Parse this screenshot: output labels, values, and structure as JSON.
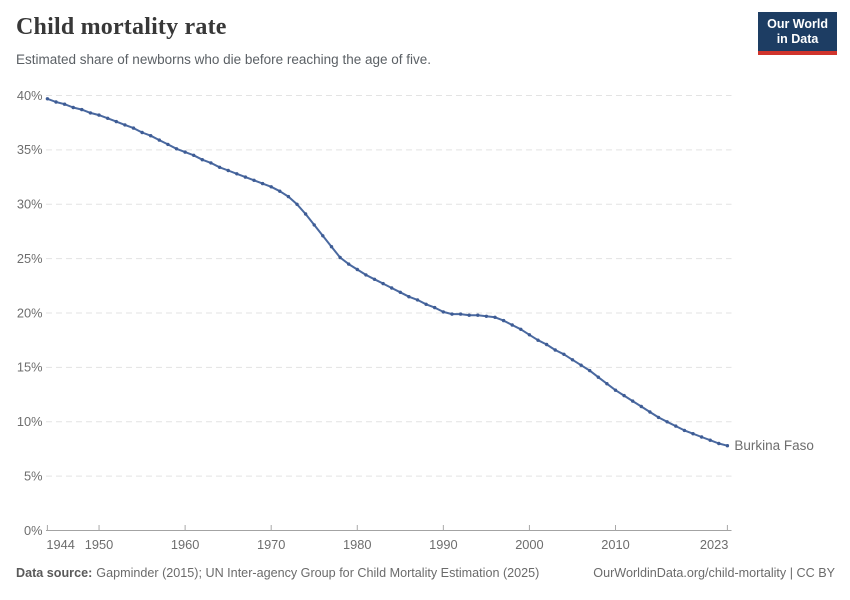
{
  "header": {
    "title": "Child mortality rate",
    "subtitle": "Estimated share of newborns who die before reaching the age of five.",
    "logo": {
      "line1": "Our World",
      "line2": "in Data",
      "bg_color": "#1d3d63",
      "accent_color": "#d0342c"
    }
  },
  "chart_data": {
    "type": "line",
    "title": "Child mortality rate",
    "xlabel": "",
    "ylabel": "",
    "xlim": [
      1944,
      2023
    ],
    "ylim": [
      0,
      40
    ],
    "grid": "horizontal-dashed",
    "legend_position": "end-of-line-label",
    "xticks": [
      1944,
      1950,
      1960,
      1970,
      1980,
      1990,
      2000,
      2010,
      2023
    ],
    "yticks": [
      0,
      5,
      10,
      15,
      20,
      25,
      30,
      35,
      40
    ],
    "ytick_suffix": "%",
    "series": [
      {
        "name": "Burkina Faso",
        "color": "#4a69a0",
        "point_color": "#3e5c95",
        "label_color": "#3c64a4",
        "years": [
          1944,
          1945,
          1946,
          1947,
          1948,
          1949,
          1950,
          1951,
          1952,
          1953,
          1954,
          1955,
          1956,
          1957,
          1958,
          1959,
          1960,
          1961,
          1962,
          1963,
          1964,
          1965,
          1966,
          1967,
          1968,
          1969,
          1970,
          1971,
          1972,
          1973,
          1974,
          1975,
          1976,
          1977,
          1978,
          1979,
          1980,
          1981,
          1982,
          1983,
          1984,
          1985,
          1986,
          1987,
          1988,
          1989,
          1990,
          1991,
          1992,
          1993,
          1994,
          1995,
          1996,
          1997,
          1998,
          1999,
          2000,
          2001,
          2002,
          2003,
          2004,
          2005,
          2006,
          2007,
          2008,
          2009,
          2010,
          2011,
          2012,
          2013,
          2014,
          2015,
          2016,
          2017,
          2018,
          2019,
          2020,
          2021,
          2022,
          2023
        ],
        "values": [
          39.7,
          39.4,
          39.2,
          38.9,
          38.7,
          38.4,
          38.2,
          37.9,
          37.6,
          37.3,
          37.0,
          36.6,
          36.3,
          35.9,
          35.5,
          35.1,
          34.8,
          34.5,
          34.1,
          33.8,
          33.4,
          33.1,
          32.8,
          32.5,
          32.2,
          31.9,
          31.6,
          31.2,
          30.7,
          30.0,
          29.1,
          28.1,
          27.1,
          26.1,
          25.1,
          24.5,
          24.0,
          23.5,
          23.1,
          22.7,
          22.3,
          21.9,
          21.5,
          21.2,
          20.8,
          20.5,
          20.1,
          19.9,
          19.9,
          19.8,
          19.8,
          19.7,
          19.6,
          19.3,
          18.9,
          18.5,
          18.0,
          17.5,
          17.1,
          16.6,
          16.2,
          15.7,
          15.2,
          14.7,
          14.1,
          13.5,
          12.9,
          12.4,
          11.9,
          11.4,
          10.9,
          10.4,
          10.0,
          9.6,
          9.2,
          8.9,
          8.6,
          8.3,
          8.0,
          7.8
        ]
      }
    ]
  },
  "footer": {
    "source_label": "Data source:",
    "source_text": "Gapminder (2015); UN Inter-agency Group for Child Mortality Estimation (2025)",
    "link_text": "OurWorldinData.org/child-mortality | CC BY"
  }
}
